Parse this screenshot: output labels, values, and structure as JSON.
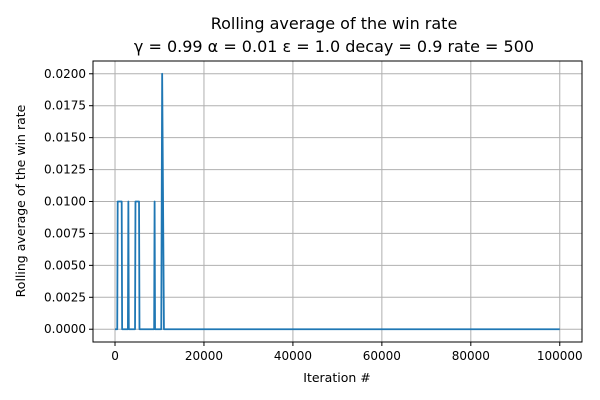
{
  "chart_data": {
    "type": "line",
    "title": "Rolling average of the win rate",
    "subtitle": "γ = 0.99 α = 0.01 ε = 1.0 decay = 0.9 rate = 500",
    "xlabel": "Iteration #",
    "ylabel": "Rolling average of the win rate",
    "xlim": [
      -4950,
      105000
    ],
    "ylim": [
      -0.001,
      0.021
    ],
    "xticks": [
      0,
      20000,
      40000,
      60000,
      80000,
      100000
    ],
    "yticks": [
      0.0,
      0.0025,
      0.005,
      0.0075,
      0.01,
      0.0125,
      0.015,
      0.0175,
      0.02
    ],
    "xtick_labels": [
      "0",
      "20000",
      "40000",
      "60000",
      "80000",
      "100000"
    ],
    "ytick_labels": [
      "0.0000",
      "0.0025",
      "0.0050",
      "0.0075",
      "0.0100",
      "0.0125",
      "0.0150",
      "0.0175",
      "0.0200"
    ],
    "grid": true,
    "line_color": "#1f77b4",
    "series": [
      {
        "x": [
          0,
          500,
          600,
          1000,
          1100,
          1500,
          1600,
          2900,
          3000,
          3100,
          3300,
          3400,
          4500,
          4600,
          5400,
          5500,
          8800,
          8900,
          9000,
          10400,
          10500,
          10600,
          11000,
          100000
        ],
        "y": [
          0,
          0,
          0.01,
          0.01,
          0.01,
          0.01,
          0,
          0,
          0.01,
          0,
          0,
          0,
          0,
          0.01,
          0.01,
          0,
          0,
          0.01,
          0,
          0,
          0.01,
          0.02,
          0,
          0
        ]
      }
    ]
  }
}
